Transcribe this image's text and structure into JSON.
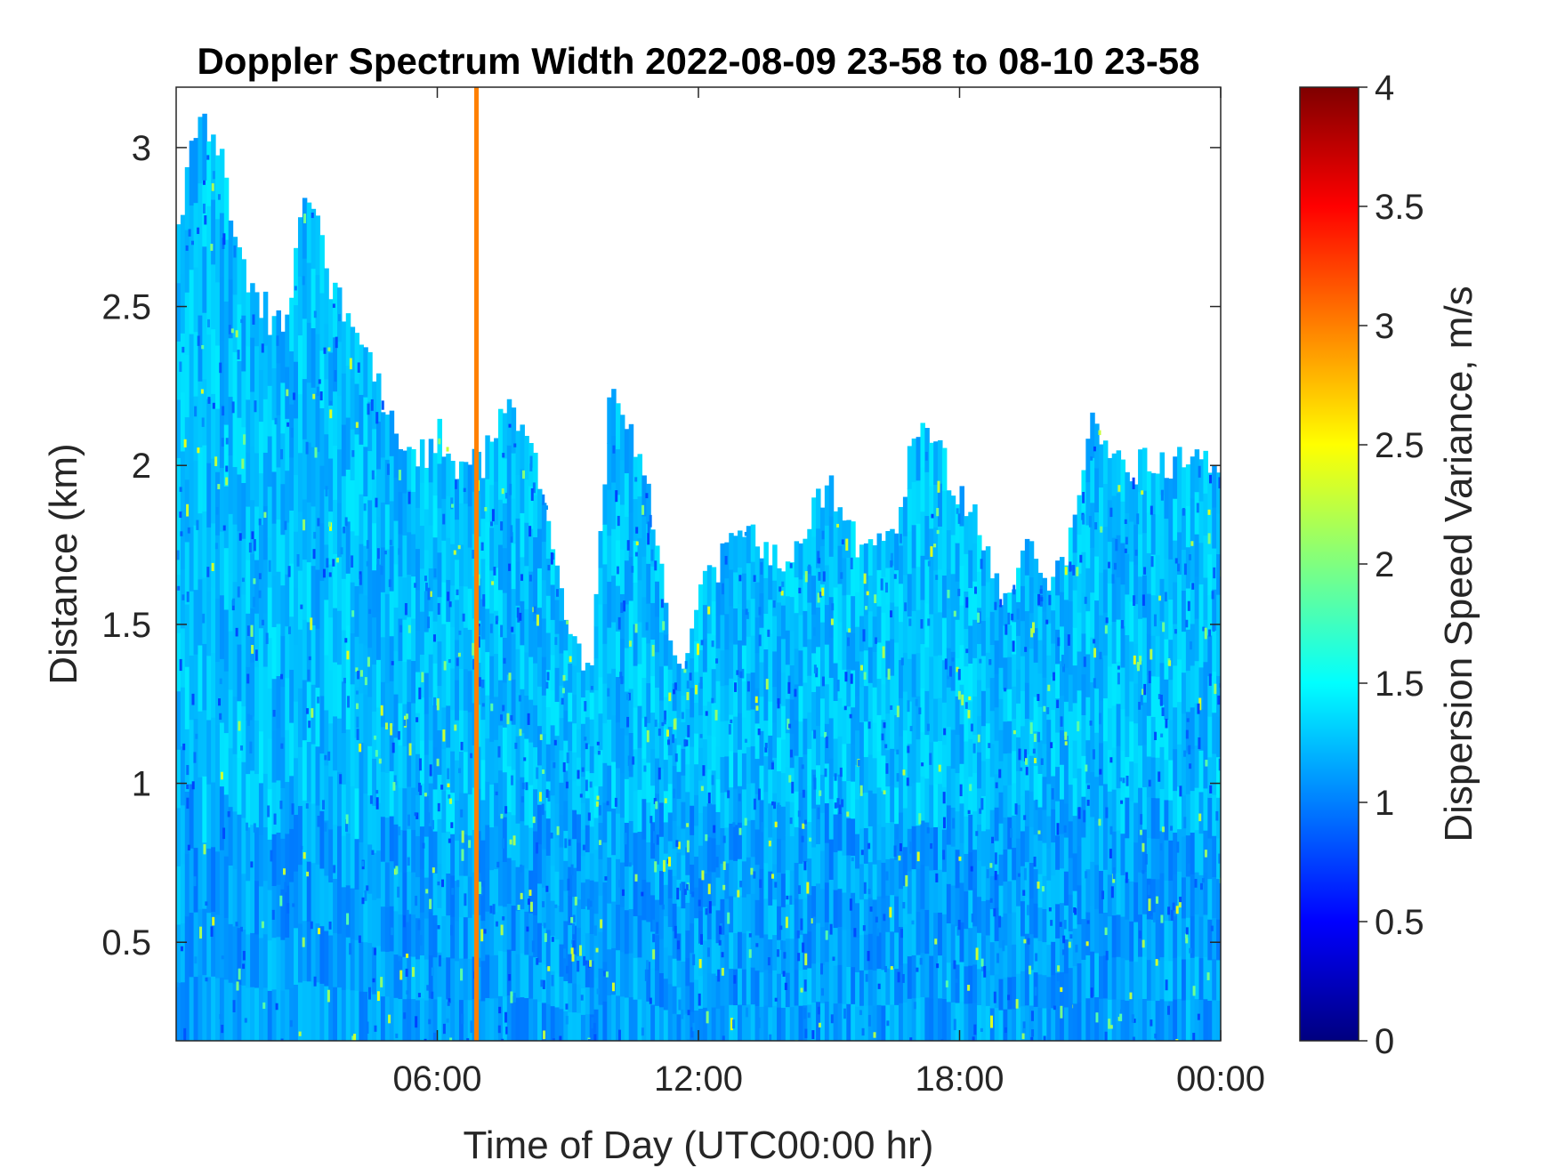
{
  "chart_data": {
    "type": "heatmap",
    "title": "Doppler Spectrum Width 2022-08-09 23-58 to 08-10 23-58",
    "xlabel": "Time of Day (UTC00:00 hr)",
    "ylabel": "Distance (km)",
    "colorbar_label": "Dispersion Speed Variance, m/s",
    "x_ticks": [
      "06:00",
      "12:00",
      "18:00",
      "00:00"
    ],
    "x_tick_hours": [
      6,
      12,
      18,
      24
    ],
    "xlim_hours": [
      0,
      24
    ],
    "y_ticks": [
      "0.5",
      "1",
      "1.5",
      "2",
      "2.5",
      "3"
    ],
    "y_tick_values": [
      0.5,
      1,
      1.5,
      2,
      2.5,
      3
    ],
    "ylim": [
      0.19,
      3.19
    ],
    "colorbar_ticks": [
      "0",
      "0.5",
      "1",
      "1.5",
      "2",
      "2.5",
      "3",
      "3.5",
      "4"
    ],
    "colorbar_tick_values": [
      0,
      0.5,
      1,
      1.5,
      2,
      2.5,
      3,
      3.5,
      4
    ],
    "clim": [
      0,
      4
    ],
    "colormap": "jet",
    "colors": {
      "dominant_field": "#1fc0f0",
      "anomaly_line": "#ff8c00",
      "background": "#ffffff"
    },
    "anomaly_line_hour": 6.9,
    "anomaly_line_value": 3.0,
    "grid": false,
    "echo_top_profile": {
      "hours": [
        0,
        0.5,
        1,
        1.5,
        2,
        2.5,
        3,
        3.5,
        4,
        4.5,
        5,
        5.5,
        6,
        6.5,
        7,
        7.5,
        8,
        8.5,
        9,
        9.5,
        10,
        10.5,
        11,
        11.5,
        12,
        12.5,
        13,
        13.5,
        14,
        14.5,
        15,
        15.5,
        16,
        16.5,
        17,
        17.5,
        18,
        18.5,
        19,
        19.5,
        20,
        20.5,
        21,
        21.5,
        22,
        22.5,
        23,
        23.5,
        24
      ],
      "top_km": [
        2.7,
        3.1,
        3.0,
        2.6,
        2.5,
        2.4,
        2.9,
        2.6,
        2.4,
        2.3,
        2.1,
        2.0,
        2.1,
        2.0,
        2.0,
        2.2,
        2.1,
        1.9,
        1.5,
        1.3,
        2.3,
        2.1,
        1.8,
        1.3,
        1.6,
        1.7,
        1.8,
        1.75,
        1.7,
        1.8,
        1.95,
        1.8,
        1.7,
        1.8,
        2.1,
        2.05,
        1.9,
        1.8,
        1.55,
        1.75,
        1.6,
        1.7,
        2.15,
        2.05,
        2.0,
        2.0,
        2.0,
        2.0,
        2.0
      ]
    }
  }
}
